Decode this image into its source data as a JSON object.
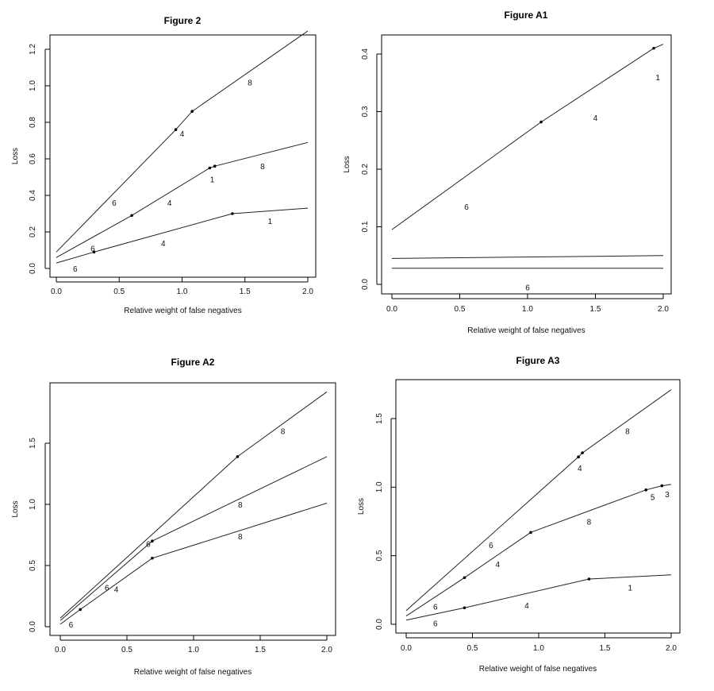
{
  "chart_data": [
    {
      "type": "line",
      "title": "Figure 2",
      "xlabel": "Relative weight of false negatives",
      "ylabel": "Loss",
      "xlim": [
        0,
        2
      ],
      "ylim": [
        0,
        1.3
      ],
      "xticks": [
        "0.0",
        "0.5",
        "1.0",
        "1.5",
        "2.0"
      ],
      "yticks": [
        "0.0",
        "0.2",
        "0.4",
        "0.6",
        "0.8",
        "1.0",
        "1.2"
      ],
      "series": [
        {
          "x": [
            0,
            0.95,
            1.08,
            2.0
          ],
          "y": [
            0.09,
            0.76,
            0.86,
            1.3
          ]
        },
        {
          "x": [
            0,
            0.6,
            1.22,
            1.26,
            2.0
          ],
          "y": [
            0.06,
            0.29,
            0.55,
            0.56,
            0.69
          ]
        },
        {
          "x": [
            0,
            0.3,
            1.4,
            2.0
          ],
          "y": [
            0.03,
            0.09,
            0.3,
            0.33
          ]
        }
      ],
      "points": [
        [
          0.95,
          0.76
        ],
        [
          1.08,
          0.86
        ],
        [
          1.22,
          0.55
        ],
        [
          1.26,
          0.56
        ],
        [
          0.6,
          0.29
        ],
        [
          0.3,
          0.09
        ],
        [
          1.4,
          0.3
        ]
      ],
      "annotations": [
        {
          "text": "8",
          "x": 1.54,
          "y": 1.02
        },
        {
          "text": "4",
          "x": 1.0,
          "y": 0.74
        },
        {
          "text": "8",
          "x": 1.64,
          "y": 0.56
        },
        {
          "text": "1",
          "x": 1.24,
          "y": 0.49
        },
        {
          "text": "6",
          "x": 0.46,
          "y": 0.36
        },
        {
          "text": "4",
          "x": 0.9,
          "y": 0.36
        },
        {
          "text": "1",
          "x": 1.7,
          "y": 0.26
        },
        {
          "text": "4",
          "x": 0.85,
          "y": 0.14
        },
        {
          "text": "6",
          "x": 0.29,
          "y": 0.11
        },
        {
          "text": "6",
          "x": 0.15,
          "y": 0.0
        }
      ]
    },
    {
      "type": "line",
      "title": "Figure A1",
      "xlabel": "Relative weight of false negatives",
      "ylabel": "Loss",
      "xlim": [
        0,
        2
      ],
      "ylim": [
        0,
        0.41
      ],
      "xticks": [
        "0.0",
        "0.5",
        "1.0",
        "1.5",
        "2.0"
      ],
      "yticks": [
        "0.0",
        "0.1",
        "0.2",
        "0.3",
        "0.4"
      ],
      "series": [
        {
          "x": [
            0,
            1.1,
            1.93,
            2.0
          ],
          "y": [
            0.095,
            0.282,
            0.41,
            0.417
          ]
        },
        {
          "x": [
            0,
            2.0
          ],
          "y": [
            0.045,
            0.05
          ]
        },
        {
          "x": [
            0,
            2.0
          ],
          "y": [
            0.028,
            0.028
          ]
        }
      ],
      "points": [
        [
          1.1,
          0.282
        ],
        [
          1.93,
          0.41
        ]
      ],
      "annotations": [
        {
          "text": "1",
          "x": 1.96,
          "y": 0.36
        },
        {
          "text": "4",
          "x": 1.5,
          "y": 0.29
        },
        {
          "text": "6",
          "x": 0.55,
          "y": 0.135
        },
        {
          "text": "6",
          "x": 1.0,
          "y": -0.005
        }
      ]
    },
    {
      "type": "line",
      "title": "Figure A2",
      "xlabel": "Relative weight of false negatives",
      "ylabel": "Loss",
      "xlim": [
        0,
        2
      ],
      "ylim": [
        0,
        1.95
      ],
      "xticks": [
        "0.0",
        "0.5",
        "1.0",
        "1.5",
        "2.0"
      ],
      "yticks": [
        "0.0",
        "0.5",
        "1.0",
        "1.5"
      ],
      "series": [
        {
          "x": [
            0,
            1.33,
            2.0
          ],
          "y": [
            0.07,
            1.39,
            1.92
          ]
        },
        {
          "x": [
            0,
            0.69,
            2.0
          ],
          "y": [
            0.05,
            0.7,
            1.39
          ]
        },
        {
          "x": [
            0,
            0.15,
            0.69,
            2.0
          ],
          "y": [
            0.02,
            0.14,
            0.56,
            1.01
          ]
        }
      ],
      "points": [
        [
          1.33,
          1.39
        ],
        [
          0.69,
          0.7
        ],
        [
          0.69,
          0.56
        ],
        [
          0.15,
          0.14
        ]
      ],
      "annotations": [
        {
          "text": "8",
          "x": 1.67,
          "y": 1.6
        },
        {
          "text": "8",
          "x": 1.35,
          "y": 1.0
        },
        {
          "text": "8",
          "x": 1.35,
          "y": 0.74
        },
        {
          "text": "6",
          "x": 0.66,
          "y": 0.68
        },
        {
          "text": "6",
          "x": 0.35,
          "y": 0.32
        },
        {
          "text": "4",
          "x": 0.42,
          "y": 0.31
        },
        {
          "text": "6",
          "x": 0.08,
          "y": 0.02
        }
      ]
    },
    {
      "type": "line",
      "title": "Figure A3",
      "xlabel": "Relative weight of false negatives",
      "ylabel": "Loss",
      "xlim": [
        0,
        2
      ],
      "ylim": [
        0,
        1.72
      ],
      "xticks": [
        "0.0",
        "0.5",
        "1.0",
        "1.5",
        "2.0"
      ],
      "yticks": [
        "0.0",
        "0.5",
        "1.0",
        "1.5"
      ],
      "series": [
        {
          "x": [
            0,
            1.3,
            1.33,
            2.0
          ],
          "y": [
            0.1,
            1.22,
            1.25,
            1.71
          ]
        },
        {
          "x": [
            0,
            0.44,
            0.94,
            1.81,
            1.93,
            2.0
          ],
          "y": [
            0.06,
            0.34,
            0.67,
            0.98,
            1.01,
            1.02
          ]
        },
        {
          "x": [
            0,
            0.44,
            1.38,
            2.0
          ],
          "y": [
            0.03,
            0.12,
            0.33,
            0.36
          ]
        }
      ],
      "points": [
        [
          1.3,
          1.22
        ],
        [
          1.33,
          1.25
        ],
        [
          0.44,
          0.34
        ],
        [
          0.94,
          0.67
        ],
        [
          1.81,
          0.98
        ],
        [
          1.93,
          1.01
        ],
        [
          0.44,
          0.12
        ],
        [
          1.38,
          0.33
        ]
      ],
      "annotations": [
        {
          "text": "8",
          "x": 1.67,
          "y": 1.41
        },
        {
          "text": "4",
          "x": 1.31,
          "y": 1.14
        },
        {
          "text": "5",
          "x": 1.86,
          "y": 0.93
        },
        {
          "text": "3",
          "x": 1.97,
          "y": 0.95
        },
        {
          "text": "8",
          "x": 1.38,
          "y": 0.75
        },
        {
          "text": "6",
          "x": 0.64,
          "y": 0.58
        },
        {
          "text": "4",
          "x": 0.69,
          "y": 0.44
        },
        {
          "text": "1",
          "x": 1.69,
          "y": 0.27
        },
        {
          "text": "4",
          "x": 0.91,
          "y": 0.14
        },
        {
          "text": "6",
          "x": 0.22,
          "y": 0.13
        },
        {
          "text": "6",
          "x": 0.22,
          "y": 0.01
        }
      ]
    }
  ]
}
